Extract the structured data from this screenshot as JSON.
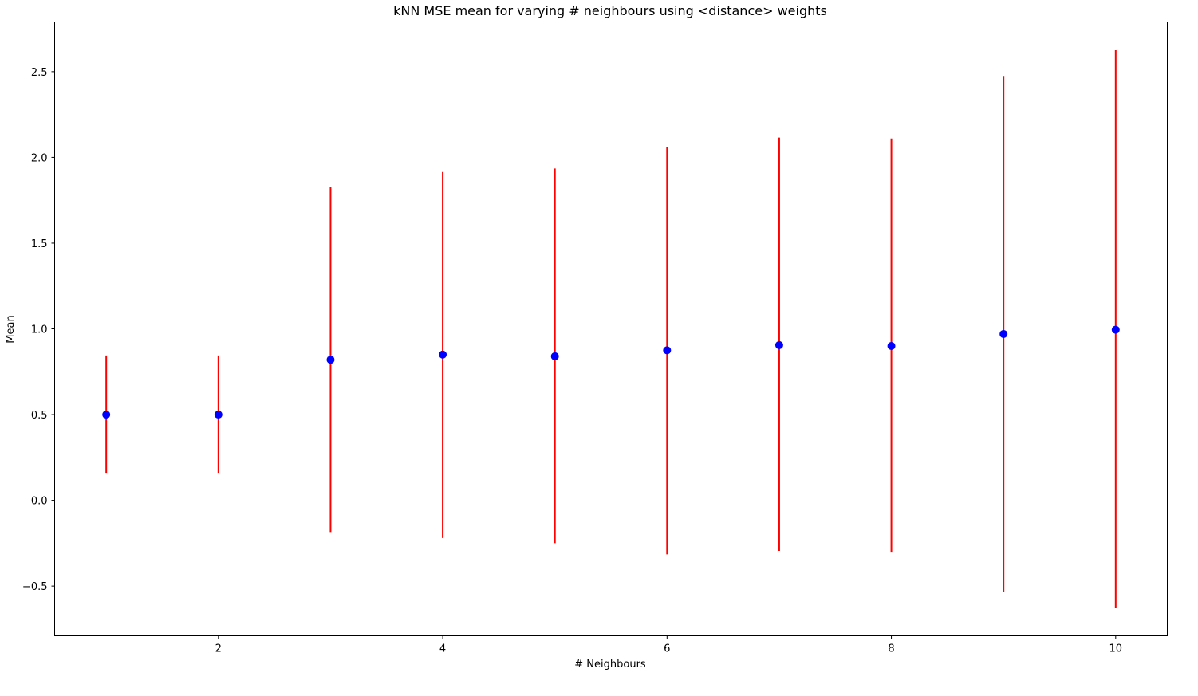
{
  "chart_data": {
    "type": "scatter",
    "title": "kNN MSE mean for varying # neighbours using <distance> weights",
    "xlabel": "# Neighbours",
    "ylabel": "Mean",
    "x": [
      1,
      2,
      3,
      4,
      5,
      6,
      7,
      8,
      9,
      10
    ],
    "series": [
      {
        "values": [
          0.5,
          0.5,
          0.82,
          0.85,
          0.84,
          0.875,
          0.905,
          0.9,
          0.97,
          0.995
        ],
        "err_low": [
          0.16,
          0.16,
          -0.185,
          -0.22,
          -0.25,
          -0.315,
          -0.295,
          -0.305,
          -0.535,
          -0.625
        ],
        "err_high": [
          0.845,
          0.845,
          1.825,
          1.915,
          1.935,
          2.06,
          2.115,
          2.11,
          2.475,
          2.625
        ]
      }
    ],
    "xlim": [
      0.54,
      10.46
    ],
    "ylim": [
      -0.79,
      2.79
    ],
    "xticks": [
      2,
      4,
      6,
      8,
      10
    ],
    "yticks": [
      -0.5,
      0.0,
      0.5,
      1.0,
      1.5,
      2.0,
      2.5
    ],
    "ytick_labels": [
      "−0.5",
      "0.0",
      "0.5",
      "1.0",
      "1.5",
      "2.0",
      "2.5"
    ],
    "xtick_labels": [
      "2",
      "4",
      "6",
      "8",
      "10"
    ],
    "grid": false,
    "colors": {
      "marker": "#0000ff",
      "errorbar": "#ff0000"
    }
  }
}
